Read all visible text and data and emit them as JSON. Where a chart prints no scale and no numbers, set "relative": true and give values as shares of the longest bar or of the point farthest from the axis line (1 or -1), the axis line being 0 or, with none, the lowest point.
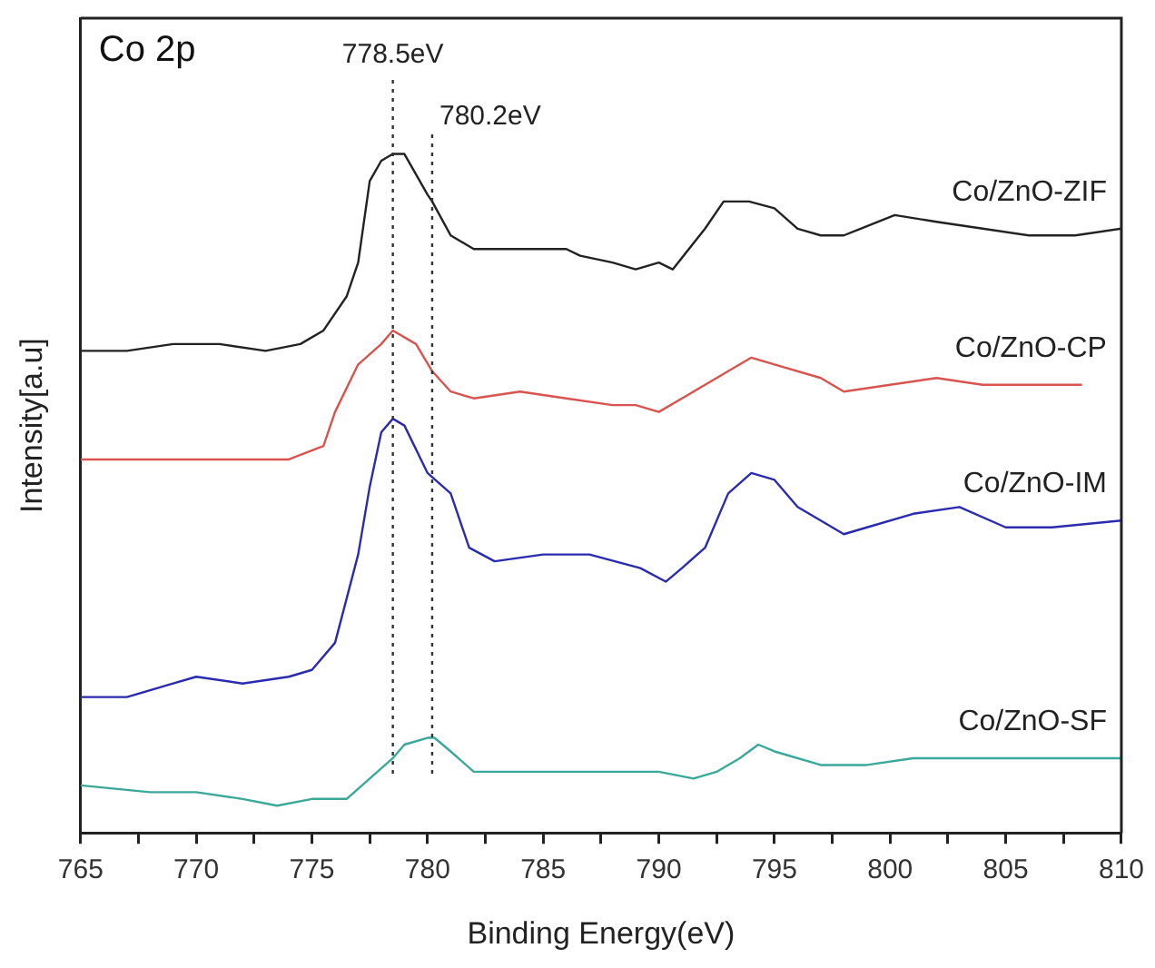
{
  "chart_data": {
    "type": "line",
    "relative": true,
    "xlabel": "Binding Energy(eV)",
    "ylabel": "Intensity[a.u]",
    "xlim": [
      765,
      810
    ],
    "xticks": [
      765,
      {
        "value": 767.5,
        "label": null
      },
      770,
      {
        "value": 772.5,
        "label": null
      },
      775,
      {
        "value": 777.5,
        "label": null
      },
      780,
      {
        "value": 782.5,
        "label": null
      },
      785,
      {
        "value": 787.5,
        "label": null
      },
      790,
      {
        "value": 792.5,
        "label": null
      },
      795,
      {
        "value": 797.5,
        "label": null
      },
      800,
      {
        "value": 802.5,
        "label": null
      },
      805,
      {
        "value": 807.5,
        "label": null
      },
      810
    ],
    "grid": false,
    "legend": false,
    "marker": "none",
    "line_style": "solid",
    "annotations": [
      "Co 2p"
    ],
    "ref_lines": [
      {
        "axis": "x",
        "value": 778.5,
        "label": "778.5eV",
        "color": "#333333",
        "line_style": "dotted"
      },
      {
        "axis": "x",
        "value": 780.2,
        "label": "780.2eV",
        "color": "#333333",
        "line_style": "dotted"
      }
    ],
    "series": [
      {
        "name": "Co/ZnO-ZIF",
        "color": "#222222",
        "x": [
          765,
          767,
          769,
          771,
          773,
          774.5,
          775.5,
          776.5,
          777,
          777.5,
          778,
          778.5,
          779,
          780,
          780.2,
          781,
          782,
          784,
          786,
          786.6,
          788,
          789,
          790,
          790.6,
          792,
          792.8,
          793.9,
          795,
          796,
          797,
          798,
          800.2,
          802,
          804,
          806,
          808,
          810
        ],
        "values": [
          0.71,
          0.71,
          0.72,
          0.72,
          0.71,
          0.72,
          0.74,
          0.79,
          0.84,
          0.96,
          0.99,
          1.0,
          1.0,
          0.94,
          0.93,
          0.88,
          0.86,
          0.86,
          0.86,
          0.85,
          0.84,
          0.83,
          0.84,
          0.83,
          0.89,
          0.93,
          0.93,
          0.92,
          0.89,
          0.88,
          0.88,
          0.91,
          0.9,
          0.89,
          0.88,
          0.88,
          0.89
        ]
      },
      {
        "name": "Co/ZnO-CP",
        "color": "#d9534f",
        "x": [
          765,
          768,
          770,
          772,
          774,
          775.5,
          776,
          777,
          778,
          778.5,
          779.5,
          780.2,
          781,
          782,
          784,
          786,
          788,
          789,
          790,
          791,
          792,
          793,
          794,
          795,
          797,
          798,
          800,
          802,
          804,
          806,
          808.3
        ],
        "values": [
          0.55,
          0.55,
          0.55,
          0.55,
          0.55,
          0.57,
          0.62,
          0.69,
          0.72,
          0.74,
          0.72,
          0.68,
          0.65,
          0.64,
          0.65,
          0.64,
          0.63,
          0.63,
          0.62,
          0.64,
          0.66,
          0.68,
          0.7,
          0.69,
          0.67,
          0.65,
          0.66,
          0.67,
          0.66,
          0.66,
          0.66
        ]
      },
      {
        "name": "Co/ZnO-IM",
        "color": "#2b2bb0",
        "x": [
          765,
          767,
          769,
          770,
          772,
          774,
          775,
          776,
          777,
          777.5,
          778,
          778.5,
          779,
          780,
          781,
          781.8,
          782.9,
          785,
          787,
          789.2,
          790.3,
          791,
          792,
          793,
          794,
          795,
          796,
          797,
          798,
          799,
          801,
          803,
          805,
          807,
          810
        ],
        "values": [
          0.2,
          0.2,
          0.22,
          0.23,
          0.22,
          0.23,
          0.24,
          0.28,
          0.41,
          0.51,
          0.59,
          0.61,
          0.6,
          0.53,
          0.5,
          0.42,
          0.4,
          0.41,
          0.41,
          0.39,
          0.37,
          0.39,
          0.42,
          0.5,
          0.53,
          0.52,
          0.48,
          0.46,
          0.44,
          0.45,
          0.47,
          0.48,
          0.45,
          0.45,
          0.46
        ]
      },
      {
        "name": "Co/ZnO-SF",
        "color": "#3aa89a",
        "x": [
          765,
          768,
          770,
          772,
          773.5,
          775,
          776.5,
          777.5,
          778.5,
          779,
          780,
          780.3,
          781,
          782,
          784,
          786,
          788,
          790,
          791.5,
          792.5,
          793.5,
          794.3,
          795,
          797,
          799,
          801,
          803,
          805,
          807,
          810
        ],
        "values": [
          0.07,
          0.06,
          0.06,
          0.05,
          0.04,
          0.05,
          0.05,
          0.08,
          0.11,
          0.13,
          0.14,
          0.14,
          0.12,
          0.09,
          0.09,
          0.09,
          0.09,
          0.09,
          0.08,
          0.09,
          0.11,
          0.13,
          0.12,
          0.1,
          0.1,
          0.11,
          0.11,
          0.11,
          0.11,
          0.11
        ]
      }
    ]
  }
}
